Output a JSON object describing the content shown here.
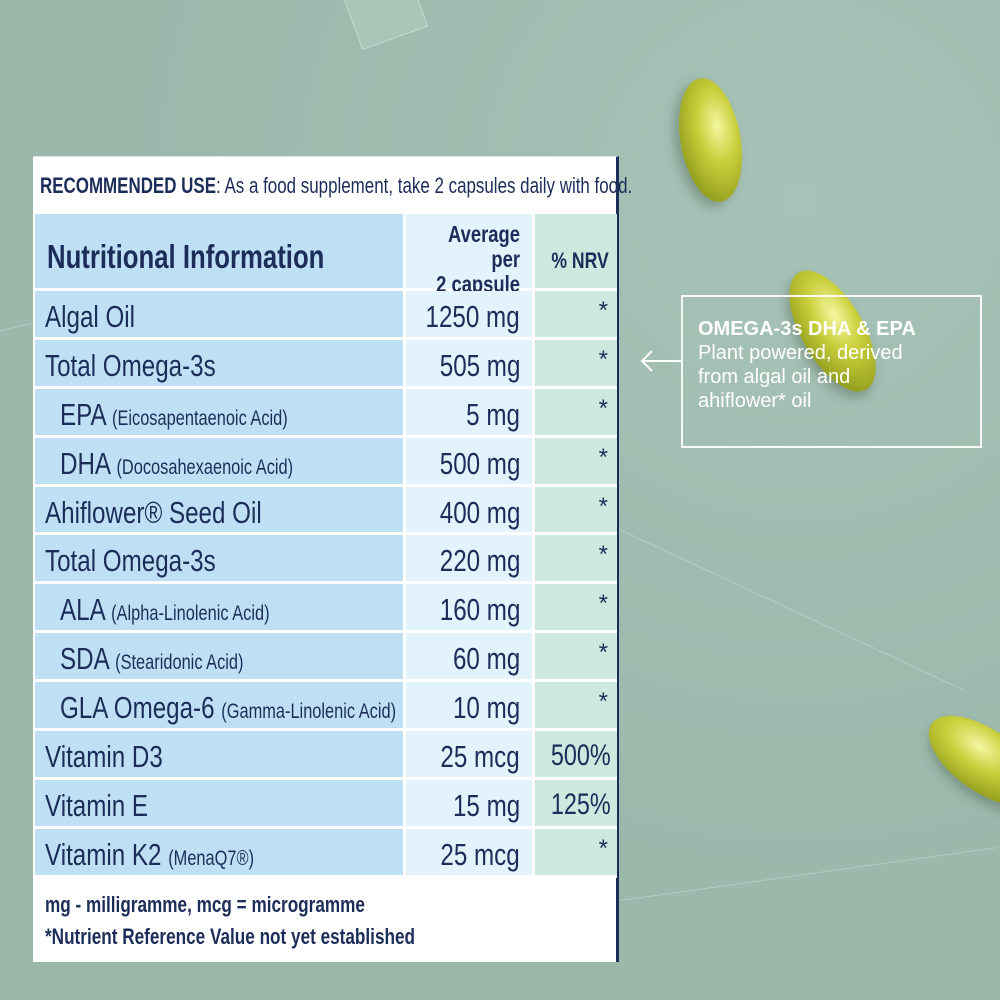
{
  "recommended_use": {
    "label": "RECOMMENDED USE",
    "text": ": As a food supplement, take 2 capsules daily with food."
  },
  "table": {
    "title": "Nutritional Information",
    "col_value_header": [
      "Average per",
      "2 capsule"
    ],
    "col_nrv_header": "% NRV",
    "rows": [
      {
        "name": "Algal Oil",
        "note": "",
        "value": "1250 mg",
        "nrv": "*",
        "indent": false
      },
      {
        "name": "Total Omega-3s",
        "note": "",
        "value": "505 mg",
        "nrv": "*",
        "indent": false
      },
      {
        "name": "EPA",
        "note": "(Eicosapentaenoic Acid)",
        "value": "5 mg",
        "nrv": "*",
        "indent": true
      },
      {
        "name": "DHA",
        "note": "(Docosahexaenoic Acid)",
        "value": "500 mg",
        "nrv": "*",
        "indent": true
      },
      {
        "name": "Ahiflower® Seed Oil",
        "note": "",
        "value": "400 mg",
        "nrv": "*",
        "indent": false
      },
      {
        "name": "Total Omega-3s",
        "note": "",
        "value": "220 mg",
        "nrv": "*",
        "indent": false
      },
      {
        "name": "ALA",
        "note": "(Alpha-Linolenic Acid)",
        "value": "160 mg",
        "nrv": "*",
        "indent": true
      },
      {
        "name": "SDA",
        "note": "(Stearidonic Acid)",
        "value": "60 mg",
        "nrv": "*",
        "indent": true
      },
      {
        "name": "GLA Omega-6",
        "note": "(Gamma-Linolenic Acid)",
        "value": "10 mg",
        "nrv": "*",
        "indent": true
      },
      {
        "name": "Vitamin D3",
        "note": "",
        "value": "25 mcg",
        "nrv": "500%",
        "indent": false
      },
      {
        "name": "Vitamin E",
        "note": "",
        "value": "15 mg",
        "nrv": "125%",
        "indent": false
      },
      {
        "name": "Vitamin K2",
        "note": "(MenaQ7®)",
        "value": "25 mcg",
        "nrv": "*",
        "indent": false
      }
    ]
  },
  "footnotes": [
    "mg - milligramme, mcg = microgramme",
    "*Nutrient Reference Value not yet established"
  ],
  "callout": {
    "title": "OMEGA-3s DHA & EPA",
    "lines": [
      "Plant powered, derived",
      "from algal oil and",
      "ahiflower* oil"
    ]
  },
  "colors": {
    "navy": "#1c2d5a",
    "label_col": "#bfe0f4",
    "value_col": "#e3f3fb",
    "nrv_col": "#cde9df",
    "background": "#9bb8ab",
    "capsule": "#c9cf3a"
  }
}
